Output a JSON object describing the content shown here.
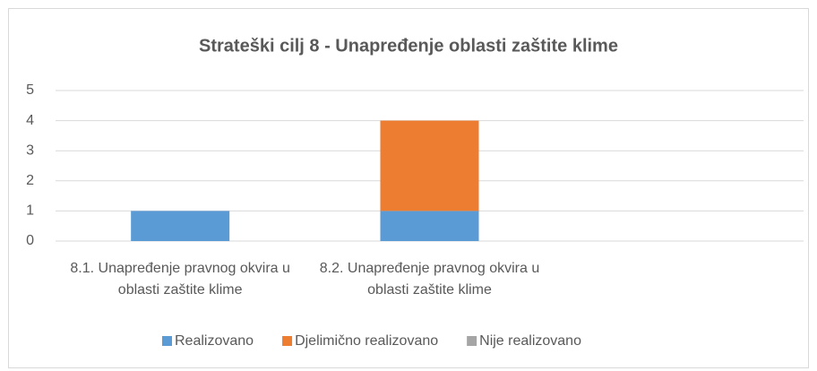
{
  "chart_data": {
    "type": "stacked_bar",
    "title": "Strateški cilj 8 - Unapređenje oblasti zaštite klime",
    "categories": [
      "8.1. Unapređenje pravnog okvira u oblasti zaštite klime",
      "8.2. Unapređenje pravnog okvira u oblasti zaštite klime",
      null
    ],
    "series": [
      {
        "name": "Realizovano",
        "color": "#5b9bd5",
        "values": [
          1,
          1,
          null
        ]
      },
      {
        "name": "Djelimično realizovano",
        "color": "#ed7d31",
        "values": [
          0,
          3,
          null
        ]
      },
      {
        "name": "Nije realizovano",
        "color": "#a5a5a5",
        "values": [
          0,
          0,
          null
        ]
      }
    ],
    "ylim": [
      0,
      5
    ],
    "yticks": [
      0,
      1,
      2,
      3,
      4,
      5
    ],
    "grid": true,
    "legend": "bottom"
  }
}
